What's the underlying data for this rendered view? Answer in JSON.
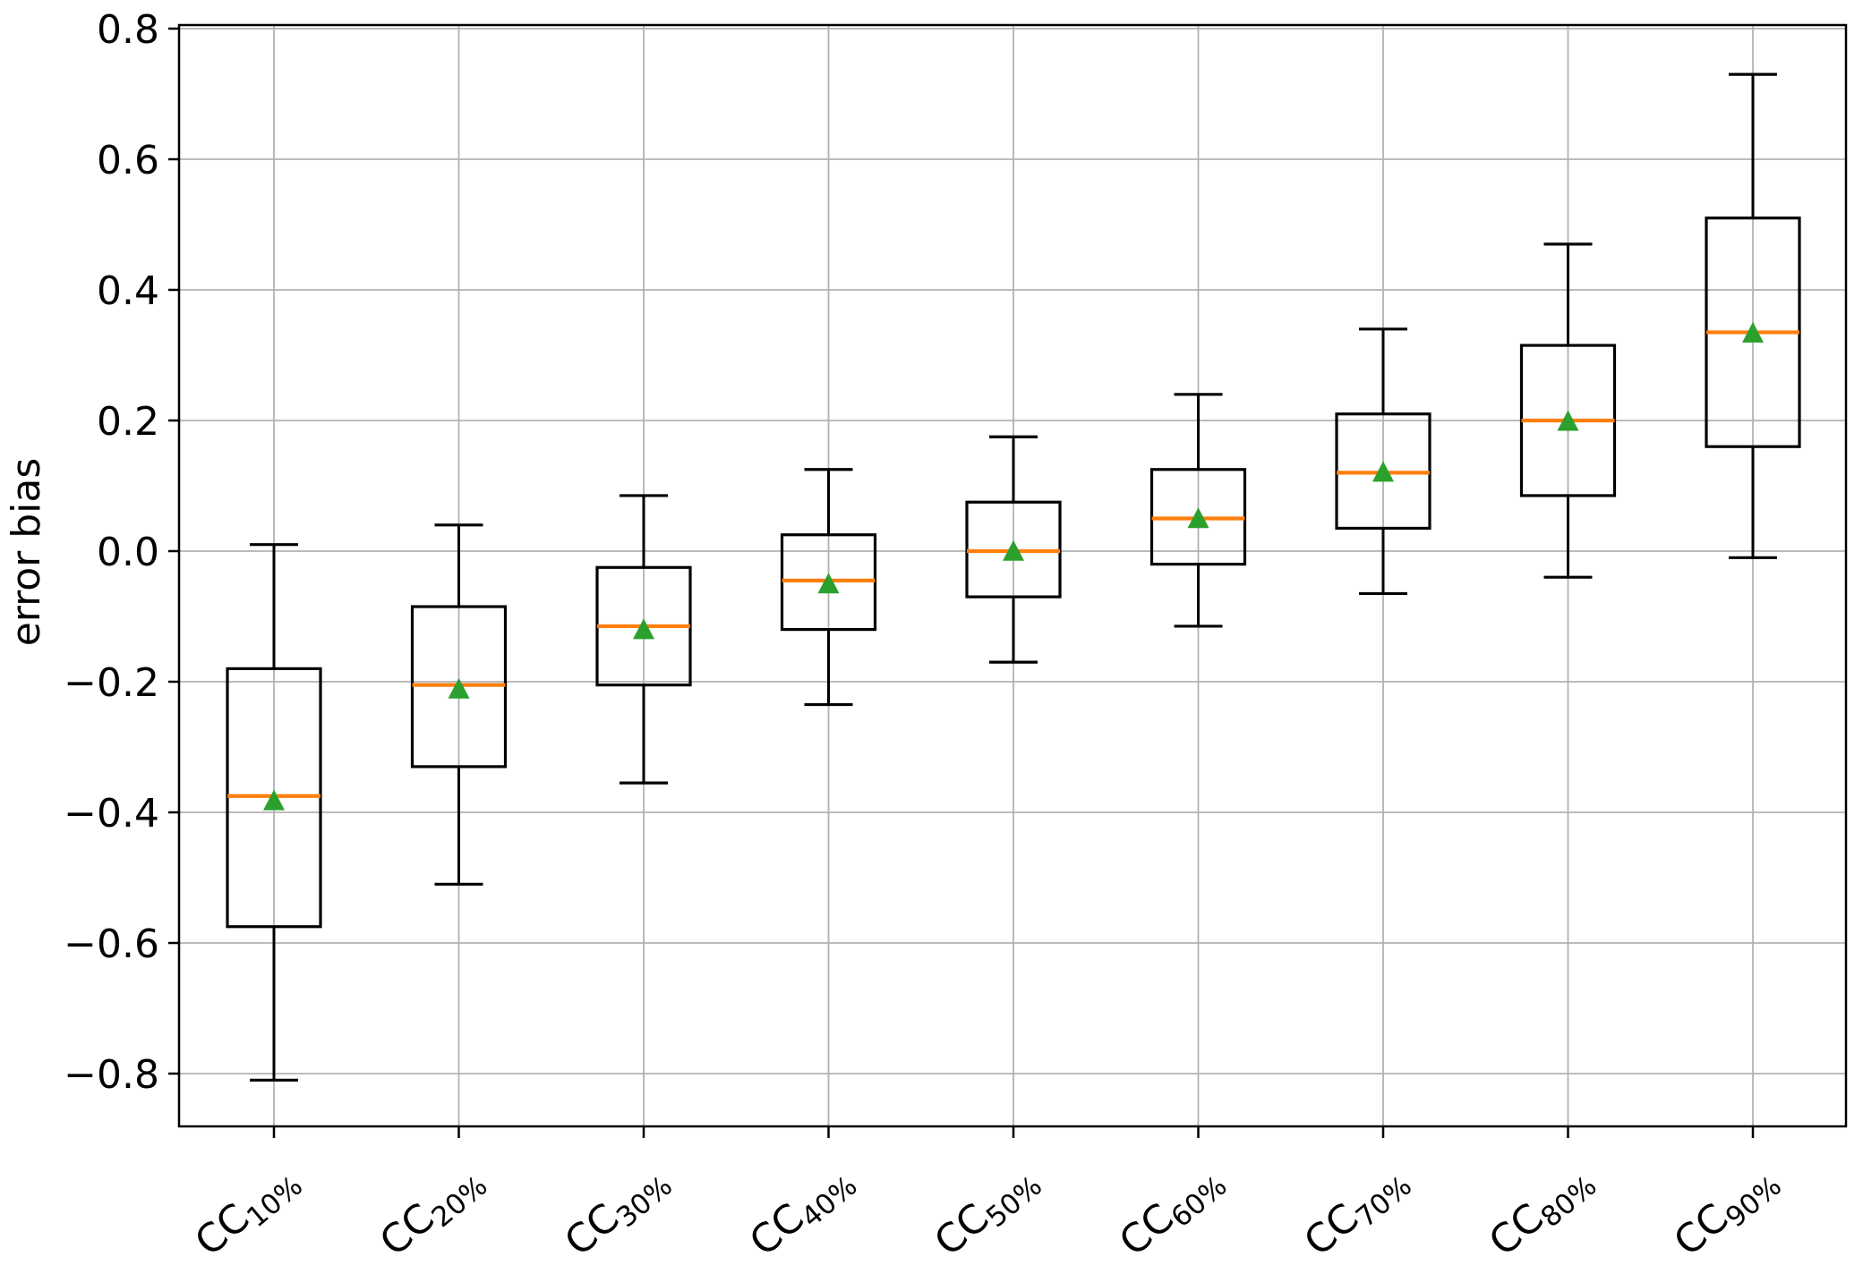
{
  "figure": {
    "background": "#ffffff"
  },
  "chart_data": {
    "type": "boxplot",
    "title": "",
    "xlabel": "",
    "ylabel": "error bias",
    "grid": true,
    "legend": "none",
    "ylim": [
      -0.88,
      0.805
    ],
    "yticks": [
      0.8,
      0.6,
      0.4,
      0.2,
      0.0,
      -0.2,
      -0.4,
      -0.6,
      -0.8
    ],
    "ytick_labels": [
      "0.8",
      "0.6",
      "0.4",
      "0.2",
      "0.0",
      "−0.2",
      "−0.4",
      "−0.6",
      "−0.8"
    ],
    "categories": [
      "CC10%",
      "CC20%",
      "CC30%",
      "CC40%",
      "CC50%",
      "CC60%",
      "CC70%",
      "CC80%",
      "CC90%"
    ],
    "category_labels": [
      {
        "base": "CC",
        "sub": "10%"
      },
      {
        "base": "CC",
        "sub": "20%"
      },
      {
        "base": "CC",
        "sub": "30%"
      },
      {
        "base": "CC",
        "sub": "40%"
      },
      {
        "base": "CC",
        "sub": "50%"
      },
      {
        "base": "CC",
        "sub": "60%"
      },
      {
        "base": "CC",
        "sub": "70%"
      },
      {
        "base": "CC",
        "sub": "80%"
      },
      {
        "base": "CC",
        "sub": "90%"
      }
    ],
    "series": [
      {
        "label": "CC10%",
        "whislo": -0.81,
        "q1": -0.575,
        "med": -0.375,
        "mean": -0.383,
        "q3": -0.18,
        "whishi": 0.01
      },
      {
        "label": "CC20%",
        "whislo": -0.51,
        "q1": -0.33,
        "med": -0.205,
        "mean": -0.212,
        "q3": -0.085,
        "whishi": 0.04
      },
      {
        "label": "CC30%",
        "whislo": -0.355,
        "q1": -0.205,
        "med": -0.115,
        "mean": -0.121,
        "q3": -0.025,
        "whishi": 0.085
      },
      {
        "label": "CC40%",
        "whislo": -0.235,
        "q1": -0.12,
        "med": -0.045,
        "mean": -0.051,
        "q3": 0.025,
        "whishi": 0.125
      },
      {
        "label": "CC50%",
        "whislo": -0.17,
        "q1": -0.07,
        "med": 0.0,
        "mean": -0.001,
        "q3": 0.075,
        "whishi": 0.175
      },
      {
        "label": "CC60%",
        "whislo": -0.115,
        "q1": -0.02,
        "med": 0.05,
        "mean": 0.049,
        "q3": 0.125,
        "whishi": 0.24
      },
      {
        "label": "CC70%",
        "whislo": -0.065,
        "q1": 0.035,
        "med": 0.12,
        "mean": 0.12,
        "q3": 0.21,
        "whishi": 0.34
      },
      {
        "label": "CC80%",
        "whislo": -0.04,
        "q1": 0.085,
        "med": 0.2,
        "mean": 0.198,
        "q3": 0.315,
        "whishi": 0.47
      },
      {
        "label": "CC90%",
        "whislo": -0.01,
        "q1": 0.16,
        "med": 0.335,
        "mean": 0.333,
        "q3": 0.51,
        "whishi": 0.73
      }
    ],
    "colors": {
      "box_line": "#000000",
      "median": "#ff7f0e",
      "mean_marker": "#2ca02c",
      "grid": "#b2b2b2",
      "frame": "#000000"
    },
    "marker_shapes": {
      "mean": "triangle-up"
    }
  }
}
